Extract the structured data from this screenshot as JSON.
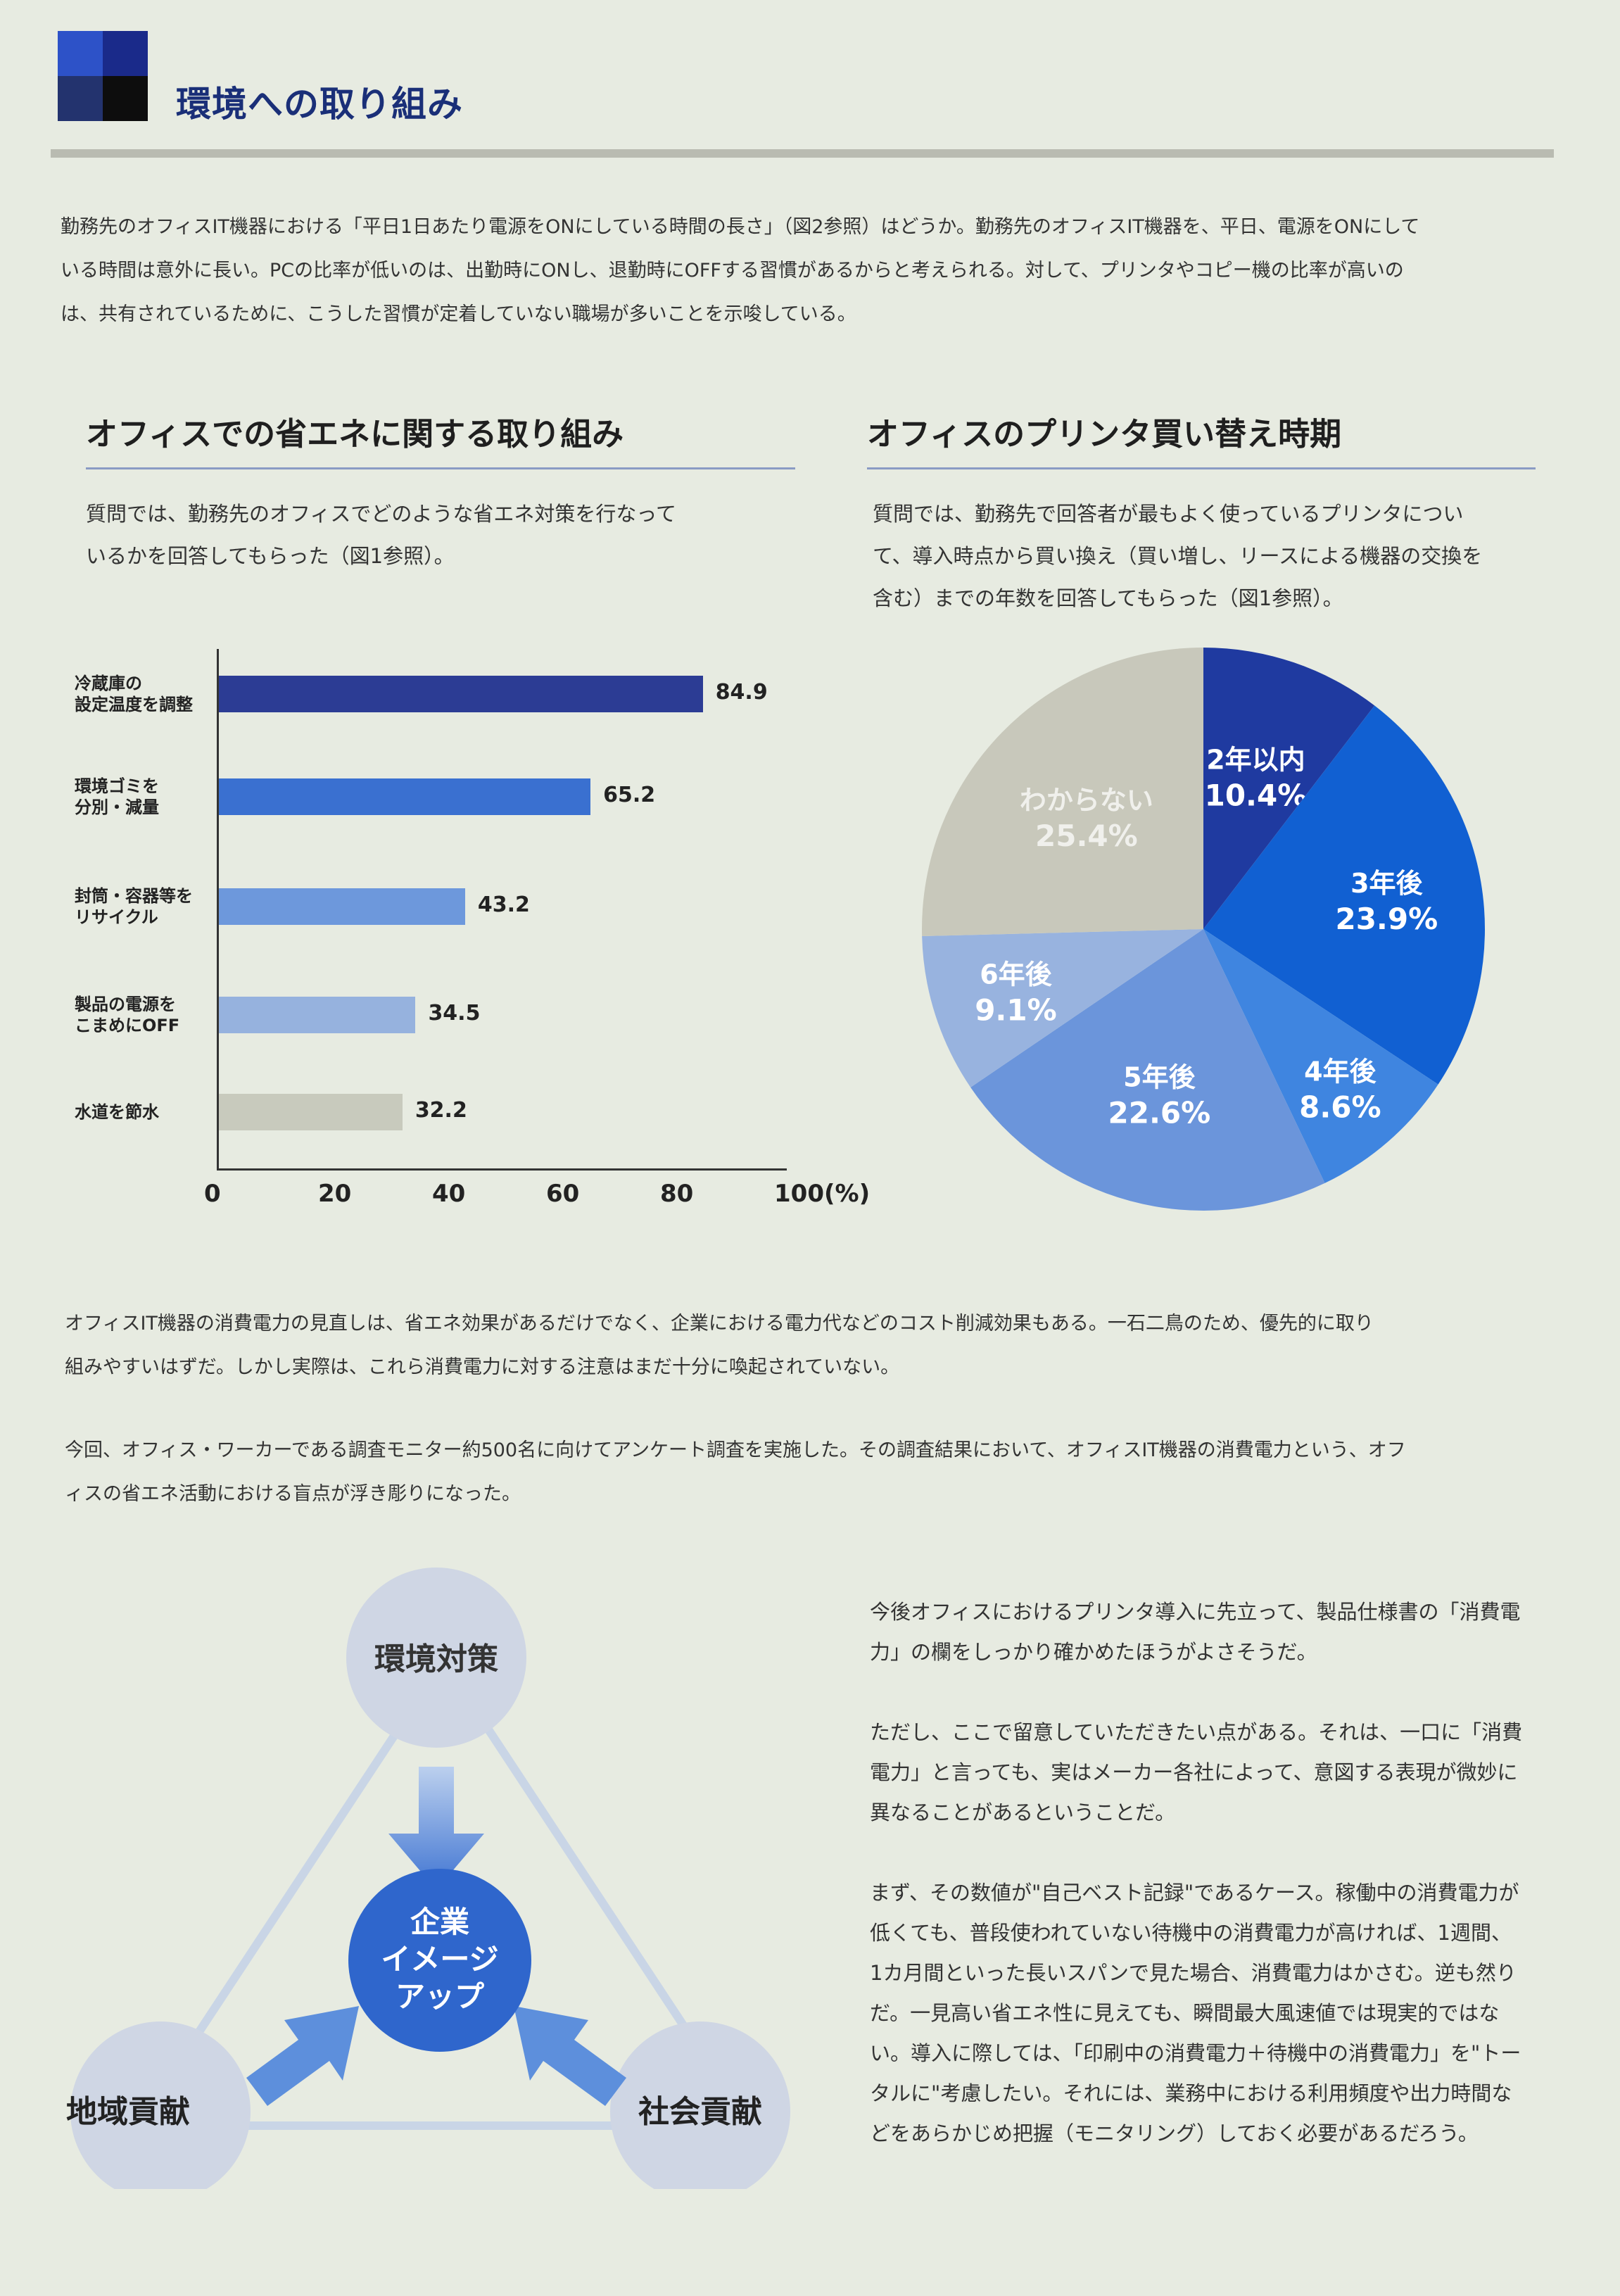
{
  "header": {
    "title": "環境への取り組み",
    "logo_colors": [
      "#2d52c8",
      "#1a2a8a",
      "#23336e",
      "#0d0d0d"
    ]
  },
  "intro": {
    "lines": [
      "勤務先のオフィスIT機器における「平日1日あたり電源をONにしている時間の長さ」（図2参照）はどうか。勤務先のオフィスIT機器を、平日、電源をONにして",
      "いる時間は意外に長い。PCの比率が低いのは、出勤時にONし、退勤時にOFFする習慣があるからと考えられる。対して、プリンタやコピー機の比率が高いの",
      "は、共有されているために、こうした習慣が定着していない職場が多いことを示唆している。"
    ]
  },
  "left_section": {
    "title": "オフィスでの省エネに関する取り組み",
    "note_lines": [
      "質問では、勤務先のオフィスでどのような省エネ対策を行なって",
      "いるかを回答してもらった（図1参照）。"
    ]
  },
  "right_section": {
    "title": "オフィスのプリンタ買い替え時期",
    "note_lines": [
      "質問では、勤務先で回答者が最もよく使っているプリンタについ",
      "て、導入時点から買い換え（買い増し、リースによる機器の交換を",
      "含む）までの年数を回答してもらった（図1参照）。"
    ]
  },
  "chart_data": [
    {
      "type": "bar",
      "orientation": "horizontal",
      "categories": [
        [
          "冷蔵庫の",
          "設定温度を調整"
        ],
        [
          "環境ゴミを",
          "分別・減量"
        ],
        [
          "封筒・容器等を",
          "リサイクル"
        ],
        [
          "製品の電源を",
          "こまめにOFF"
        ],
        [
          "水道を節水"
        ]
      ],
      "values": [
        84.9,
        65.2,
        43.2,
        34.5,
        32.2
      ],
      "value_labels": [
        "84.9",
        "65.2",
        "43.2",
        "34.5",
        "32.2"
      ],
      "colors": [
        "#2c3c94",
        "#3a70d0",
        "#6d98dc",
        "#96b2de",
        "#c8cabd"
      ],
      "xlim": [
        0,
        100
      ],
      "xticks": [
        "0",
        "20",
        "40",
        "60",
        "80",
        "100(%)"
      ],
      "grid": false
    },
    {
      "type": "pie",
      "labels": [
        "2年以内",
        "3年後",
        "4年後",
        "5年後",
        "6年後",
        "わからない"
      ],
      "values": [
        10.4,
        23.9,
        8.6,
        22.6,
        9.1,
        25.4
      ],
      "value_labels": [
        "10.4%",
        "23.9%",
        "8.6%",
        "22.6%",
        "9.1%",
        "25.4%"
      ],
      "colors": [
        "#1f3aa0",
        "#1160d2",
        "#3f85e0",
        "#6b95db",
        "#98b3df",
        "#c8c8bb"
      ],
      "start": "12 o'clock",
      "direction": "clockwise"
    }
  ],
  "middle": {
    "para1": [
      "オフィスIT機器の消費電力の見直しは、省エネ効果があるだけでなく、企業における電力代などのコスト削減効果もある。一石二鳥のため、優先的に取り",
      "組みやすいはずだ。しかし実際は、これら消費電力に対する注意はまだ十分に喚起されていない。"
    ],
    "para2": [
      "今回、オフィス・ワーカーである調査モニター約500名に向けてアンケート調査を実施した。その調査結果において、オフィスIT機器の消費電力という、オフ",
      "ィスの省エネ活動における盲点が浮き彫りになった。"
    ]
  },
  "diagram": {
    "top": "環境対策",
    "left": "地域貢献",
    "right": "社会貢献",
    "center_lines": [
      "企業",
      "イメージ",
      "アップ"
    ]
  },
  "right_text": {
    "p1": [
      "今後オフィスにおけるプリンタ導入に先立って、製品仕様書の「消費電",
      "力」の欄をしっかり確かめたほうがよさそうだ。"
    ],
    "p2": [
      "ただし、ここで留意していただきたい点がある。それは、一口に「消費",
      "電力」と言っても、実はメーカー各社によって、意図する表現が微妙に",
      "異なることがあるということだ。"
    ],
    "p3": [
      "まず、その数値が\"自己ベスト記録\"であるケース。稼働中の消費電力が",
      "低くても、普段使われていない待機中の消費電力が高ければ、1週間、",
      "1カ月間といった長いスパンで見た場合、消費電力はかさむ。逆も然り",
      "だ。一見高い省エネ性に見えても、瞬間最大風速値では現実的ではな",
      "い。導入に際しては、「印刷中の消費電力＋待機中の消費電力」を\"トー",
      "タルに\"考慮したい。それには、業務中における利用頻度や出力時間な",
      "どをあらかじめ把握（モニタリング）しておく必要があるだろう。"
    ]
  }
}
